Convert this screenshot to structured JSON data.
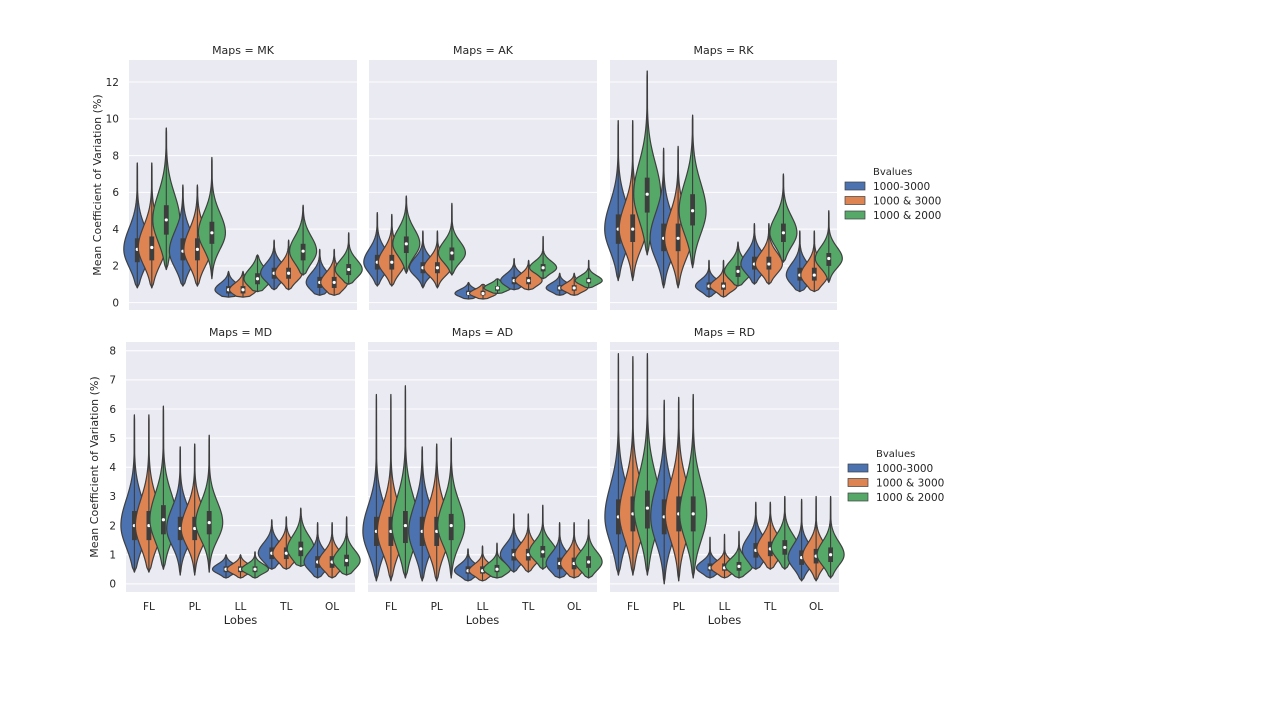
{
  "colors": {
    "panel_bg": "#EAEAF2",
    "grid": "#FFFFFF",
    "series": [
      "#4C72B0",
      "#DD8452",
      "#55A868"
    ],
    "violin_edge": "#3F3F3F",
    "inner_box": "#3D3D3D",
    "median_dot": "#FFFFFF"
  },
  "chart_data": [
    {
      "type": "violin",
      "title": "Maps = MK",
      "ylabel": "Mean Coefficient of Variation (%)",
      "xlabel": "",
      "ylim": [
        -0.4,
        13.2
      ],
      "yticks": [
        0,
        2,
        4,
        6,
        8,
        10,
        12
      ],
      "grid": true,
      "categories": [
        "FL",
        "PL",
        "LL",
        "TL",
        "OL"
      ],
      "series": [
        {
          "name": "1000-3000",
          "stats": [
            [
              0.8,
              2.2,
              2.9,
              3.5,
              7.6
            ],
            [
              0.9,
              2.3,
              2.8,
              3.5,
              6.4
            ],
            [
              0.3,
              0.5,
              0.7,
              0.9,
              1.7
            ],
            [
              0.7,
              1.3,
              1.6,
              1.9,
              3.4
            ],
            [
              0.4,
              0.8,
              1.1,
              1.4,
              2.9
            ]
          ]
        },
        {
          "name": "1000 & 3000",
          "stats": [
            [
              0.8,
              2.3,
              3.0,
              3.6,
              7.6
            ],
            [
              0.9,
              2.3,
              2.9,
              3.5,
              6.4
            ],
            [
              0.3,
              0.5,
              0.7,
              0.9,
              1.7
            ],
            [
              0.7,
              1.3,
              1.6,
              1.9,
              3.4
            ],
            [
              0.4,
              0.8,
              1.1,
              1.4,
              2.9
            ]
          ]
        },
        {
          "name": "1000 & 2000",
          "stats": [
            [
              1.8,
              3.7,
              4.5,
              5.3,
              9.5
            ],
            [
              1.3,
              3.2,
              3.8,
              4.4,
              7.9
            ],
            [
              0.6,
              1.0,
              1.3,
              1.6,
              2.6
            ],
            [
              1.5,
              2.3,
              2.8,
              3.2,
              5.3
            ],
            [
              1.0,
              1.5,
              1.8,
              2.1,
              3.8
            ]
          ]
        }
      ]
    },
    {
      "type": "violin",
      "title": "Maps = AK",
      "ylabel": "",
      "xlabel": "",
      "ylim": [
        -0.4,
        13.2
      ],
      "yticks": [
        0,
        2,
        4,
        6,
        8,
        10,
        12
      ],
      "grid": true,
      "categories": [
        "FL",
        "PL",
        "LL",
        "TL",
        "OL"
      ],
      "series": [
        {
          "name": "1000-3000",
          "stats": [
            [
              0.9,
              1.8,
              2.2,
              2.6,
              4.9
            ],
            [
              0.8,
              1.6,
              1.9,
              2.2,
              3.9
            ],
            [
              0.2,
              0.4,
              0.5,
              0.65,
              1.1
            ],
            [
              0.7,
              1.0,
              1.2,
              1.4,
              2.4
            ],
            [
              0.4,
              0.65,
              0.8,
              0.95,
              1.6
            ]
          ]
        },
        {
          "name": "1000 & 3000",
          "stats": [
            [
              0.9,
              1.8,
              2.2,
              2.6,
              4.8
            ],
            [
              0.8,
              1.6,
              1.9,
              2.2,
              3.9
            ],
            [
              0.2,
              0.4,
              0.5,
              0.65,
              1.0
            ],
            [
              0.7,
              1.0,
              1.2,
              1.4,
              2.3
            ],
            [
              0.4,
              0.65,
              0.8,
              0.95,
              1.6
            ]
          ]
        },
        {
          "name": "1000 & 2000",
          "stats": [
            [
              1.6,
              2.7,
              3.2,
              3.6,
              5.8
            ],
            [
              1.5,
              2.3,
              2.7,
              3.0,
              5.4
            ],
            [
              0.5,
              0.65,
              0.8,
              0.9,
              1.3
            ],
            [
              1.3,
              1.7,
              1.9,
              2.1,
              3.6
            ],
            [
              0.8,
              1.05,
              1.2,
              1.35,
              2.3
            ]
          ]
        }
      ]
    },
    {
      "type": "violin",
      "title": "Maps = RK",
      "ylabel": "",
      "xlabel": "",
      "ylim": [
        -0.4,
        13.2
      ],
      "yticks": [
        0,
        2,
        4,
        6,
        8,
        10,
        12
      ],
      "grid": true,
      "categories": [
        "FL",
        "PL",
        "LL",
        "TL",
        "OL"
      ],
      "series": [
        {
          "name": "1000-3000",
          "stats": [
            [
              1.2,
              3.2,
              4.0,
              4.8,
              9.9
            ],
            [
              0.8,
              2.8,
              3.5,
              4.3,
              8.4
            ],
            [
              0.3,
              0.7,
              0.9,
              1.1,
              2.3
            ],
            [
              1.0,
              1.8,
              2.1,
              2.5,
              4.3
            ],
            [
              0.6,
              1.2,
              1.5,
              1.9,
              3.9
            ]
          ]
        },
        {
          "name": "1000 & 3000",
          "stats": [
            [
              1.2,
              3.3,
              4.0,
              4.8,
              9.9
            ],
            [
              0.8,
              2.8,
              3.5,
              4.3,
              8.5
            ],
            [
              0.3,
              0.7,
              0.9,
              1.1,
              2.3
            ],
            [
              1.0,
              1.8,
              2.1,
              2.5,
              4.3
            ],
            [
              0.6,
              1.2,
              1.5,
              1.9,
              3.9
            ]
          ]
        },
        {
          "name": "1000 & 2000",
          "stats": [
            [
              2.6,
              4.9,
              5.9,
              6.8,
              12.6
            ],
            [
              1.9,
              4.2,
              5.0,
              5.9,
              10.2
            ],
            [
              0.9,
              1.4,
              1.7,
              2.0,
              3.3
            ],
            [
              2.2,
              3.3,
              3.8,
              4.3,
              7.0
            ],
            [
              1.1,
              2.0,
              2.4,
              2.7,
              5.0
            ]
          ]
        }
      ]
    },
    {
      "type": "violin",
      "title": "Maps = MD",
      "ylabel": "Mean Coefficient of Variation (%)",
      "xlabel": "Lobes",
      "ylim": [
        -0.28,
        8.3
      ],
      "yticks": [
        0,
        1,
        2,
        3,
        4,
        5,
        6,
        7,
        8
      ],
      "grid": true,
      "categories": [
        "FL",
        "PL",
        "LL",
        "TL",
        "OL"
      ],
      "series": [
        {
          "name": "1000-3000",
          "stats": [
            [
              0.4,
              1.5,
              2.0,
              2.5,
              5.8
            ],
            [
              0.3,
              1.5,
              1.9,
              2.3,
              4.7
            ],
            [
              0.2,
              0.4,
              0.5,
              0.6,
              1.0
            ],
            [
              0.5,
              0.85,
              1.05,
              1.25,
              2.2
            ],
            [
              0.2,
              0.55,
              0.75,
              0.95,
              2.1
            ]
          ]
        },
        {
          "name": "1000 & 3000",
          "stats": [
            [
              0.4,
              1.5,
              2.0,
              2.5,
              5.8
            ],
            [
              0.3,
              1.5,
              1.9,
              2.3,
              4.8
            ],
            [
              0.2,
              0.4,
              0.5,
              0.6,
              1.0
            ],
            [
              0.5,
              0.85,
              1.05,
              1.25,
              2.3
            ],
            [
              0.2,
              0.55,
              0.75,
              0.95,
              2.1
            ]
          ]
        },
        {
          "name": "1000 & 2000",
          "stats": [
            [
              0.5,
              1.7,
              2.2,
              2.7,
              6.1
            ],
            [
              0.4,
              1.7,
              2.1,
              2.5,
              5.1
            ],
            [
              0.2,
              0.4,
              0.5,
              0.6,
              1.1
            ],
            [
              0.6,
              0.95,
              1.2,
              1.45,
              2.6
            ],
            [
              0.3,
              0.6,
              0.8,
              1.0,
              2.3
            ]
          ]
        }
      ]
    },
    {
      "type": "violin",
      "title": "Maps = AD",
      "ylabel": "",
      "xlabel": "Lobes",
      "ylim": [
        -0.28,
        8.3
      ],
      "yticks": [
        0,
        1,
        2,
        3,
        4,
        5,
        6,
        7,
        8
      ],
      "grid": true,
      "categories": [
        "FL",
        "PL",
        "LL",
        "TL",
        "OL"
      ],
      "series": [
        {
          "name": "1000-3000",
          "stats": [
            [
              0.1,
              1.3,
              1.8,
              2.3,
              6.5
            ],
            [
              0.1,
              1.3,
              1.8,
              2.3,
              4.7
            ],
            [
              0.1,
              0.35,
              0.45,
              0.6,
              1.2
            ],
            [
              0.4,
              0.8,
              1.0,
              1.2,
              2.4
            ],
            [
              0.2,
              0.5,
              0.7,
              0.9,
              2.1
            ]
          ]
        },
        {
          "name": "1000 & 3000",
          "stats": [
            [
              0.1,
              1.3,
              1.8,
              2.3,
              6.5
            ],
            [
              0.1,
              1.3,
              1.8,
              2.3,
              4.8
            ],
            [
              0.1,
              0.35,
              0.45,
              0.6,
              1.3
            ],
            [
              0.4,
              0.8,
              1.0,
              1.2,
              2.4
            ],
            [
              0.2,
              0.5,
              0.7,
              0.9,
              2.1
            ]
          ]
        },
        {
          "name": "1000 & 2000",
          "stats": [
            [
              0.2,
              1.4,
              2.0,
              2.5,
              6.8
            ],
            [
              0.2,
              1.5,
              2.0,
              2.4,
              5.0
            ],
            [
              0.2,
              0.4,
              0.5,
              0.65,
              1.4
            ],
            [
              0.5,
              0.9,
              1.1,
              1.3,
              2.7
            ],
            [
              0.2,
              0.55,
              0.75,
              0.95,
              2.2
            ]
          ]
        }
      ]
    },
    {
      "type": "violin",
      "title": "Maps = RD",
      "ylabel": "",
      "xlabel": "Lobes",
      "ylim": [
        -0.28,
        8.3
      ],
      "yticks": [
        0,
        1,
        2,
        3,
        4,
        5,
        6,
        7,
        8
      ],
      "grid": true,
      "categories": [
        "FL",
        "PL",
        "LL",
        "TL",
        "OL"
      ],
      "series": [
        {
          "name": "1000-3000",
          "stats": [
            [
              0.3,
              1.7,
              2.3,
              2.9,
              7.9
            ],
            [
              0.0,
              1.7,
              2.3,
              2.9,
              6.3
            ],
            [
              0.2,
              0.45,
              0.55,
              0.7,
              1.6
            ],
            [
              0.5,
              0.9,
              1.15,
              1.4,
              2.8
            ],
            [
              0.1,
              0.65,
              0.9,
              1.15,
              2.9
            ]
          ]
        },
        {
          "name": "1000 & 3000",
          "stats": [
            [
              0.3,
              1.8,
              2.4,
              3.0,
              7.8
            ],
            [
              0.1,
              1.8,
              2.4,
              3.0,
              6.4
            ],
            [
              0.2,
              0.45,
              0.55,
              0.7,
              1.7
            ],
            [
              0.5,
              0.95,
              1.2,
              1.45,
              2.8
            ],
            [
              0.1,
              0.7,
              0.95,
              1.2,
              3.0
            ]
          ]
        },
        {
          "name": "1000 & 2000",
          "stats": [
            [
              0.3,
              1.9,
              2.6,
              3.2,
              7.9
            ],
            [
              0.2,
              1.8,
              2.4,
              3.0,
              6.5
            ],
            [
              0.2,
              0.45,
              0.6,
              0.75,
              1.8
            ],
            [
              0.5,
              1.0,
              1.25,
              1.5,
              3.0
            ],
            [
              0.2,
              0.75,
              1.0,
              1.25,
              3.0
            ]
          ]
        }
      ]
    }
  ],
  "legends": [
    {
      "title": "Bvalues",
      "entries": [
        "1000-3000",
        "1000 & 3000",
        "1000 & 2000"
      ]
    },
    {
      "title": "Bvalues",
      "entries": [
        "1000-3000",
        "1000 & 3000",
        "1000 & 2000"
      ]
    }
  ]
}
